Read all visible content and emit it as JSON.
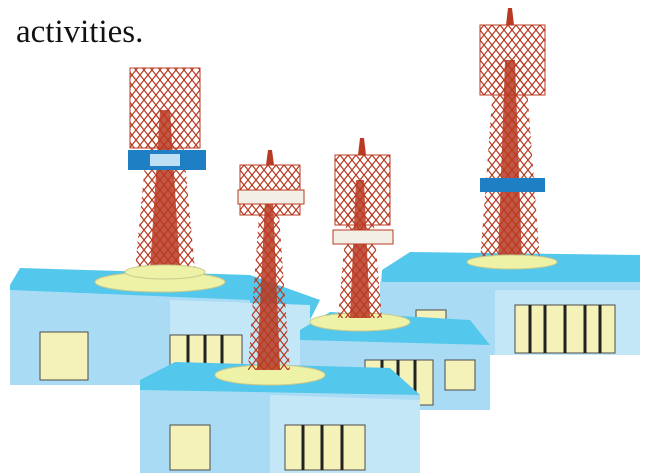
{
  "caption": {
    "line1": "",
    "line2": "activities."
  },
  "colors": {
    "roof": "#53c7ec",
    "wall": "#a9dcf4",
    "wall_front": "#c4e7f8",
    "window": "#f4f1b9",
    "platform": "#eef2a6",
    "tower_red": "#b83a22",
    "tower_white": "#f2efe6",
    "band_blue": "#1f7fc4"
  }
}
